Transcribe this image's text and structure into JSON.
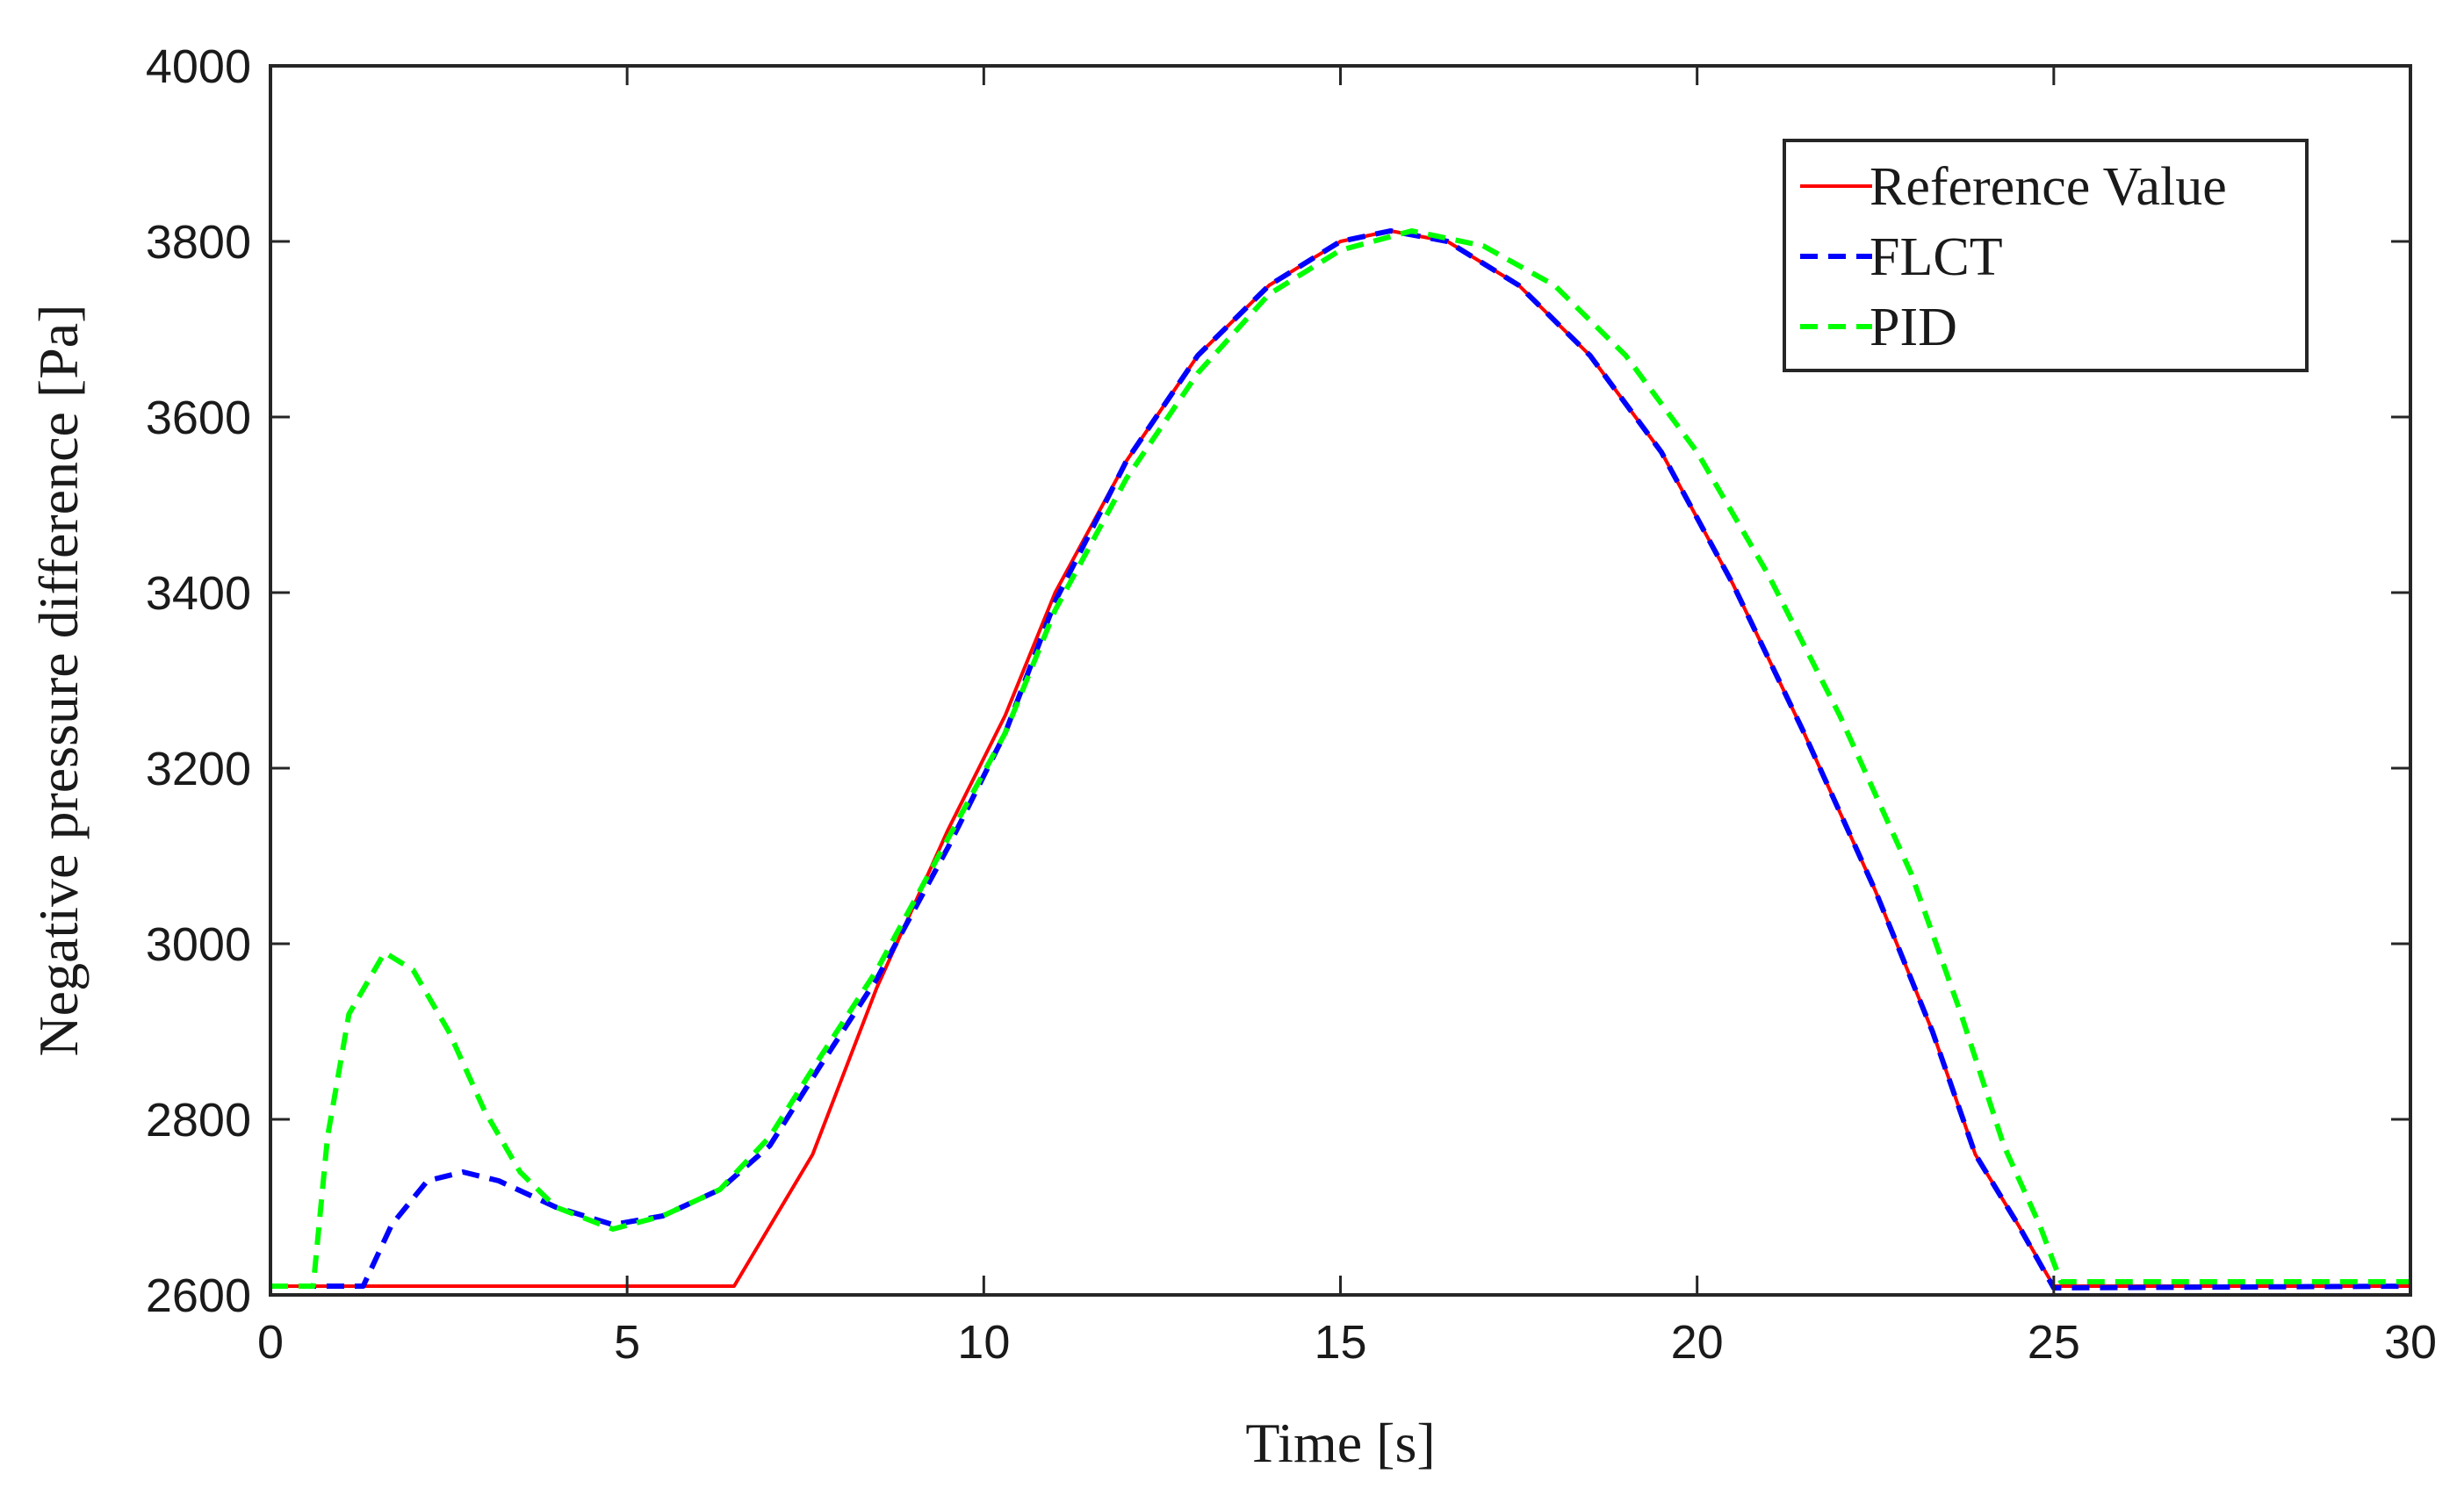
{
  "chart_data": {
    "type": "line",
    "title": "",
    "xlabel": "Time [s]",
    "ylabel": "Negative pressure difference [Pa]",
    "xlim": [
      0,
      30
    ],
    "ylim": [
      2600,
      4000
    ],
    "xticks": [
      0,
      5,
      10,
      15,
      20,
      25,
      30
    ],
    "yticks": [
      2600,
      2800,
      3000,
      3200,
      3400,
      3600,
      3800,
      4000
    ],
    "grid": false,
    "legend_position": "top-right",
    "series": [
      {
        "name": "Reference Value",
        "color": "#ff0000",
        "style": "solid",
        "points": [
          [
            0,
            2610
          ],
          [
            6.5,
            2610
          ],
          [
            7.6,
            2760
          ],
          [
            8.5,
            2950
          ],
          [
            9.5,
            3130
          ],
          [
            10.3,
            3260
          ],
          [
            11,
            3400
          ],
          [
            12,
            3550
          ],
          [
            13,
            3670
          ],
          [
            14,
            3750
          ],
          [
            15,
            3800
          ],
          [
            15.7,
            3812
          ],
          [
            16.5,
            3800
          ],
          [
            17.5,
            3750
          ],
          [
            18.5,
            3670
          ],
          [
            19.5,
            3560
          ],
          [
            20.5,
            3410
          ],
          [
            21.5,
            3240
          ],
          [
            22.5,
            3060
          ],
          [
            23.3,
            2900
          ],
          [
            23.9,
            2760
          ],
          [
            24.5,
            2680
          ],
          [
            25,
            2610
          ],
          [
            30,
            2610
          ]
        ]
      },
      {
        "name": "FLCT",
        "color": "#0000ff",
        "style": "dashed",
        "points": [
          [
            0,
            2610
          ],
          [
            1.3,
            2610
          ],
          [
            1.7,
            2680
          ],
          [
            2.2,
            2730
          ],
          [
            2.7,
            2740
          ],
          [
            3.2,
            2730
          ],
          [
            4,
            2700
          ],
          [
            4.8,
            2680
          ],
          [
            5.5,
            2690
          ],
          [
            6.3,
            2720
          ],
          [
            7,
            2770
          ],
          [
            7.7,
            2860
          ],
          [
            8.5,
            2960
          ],
          [
            9.5,
            3110
          ],
          [
            10.3,
            3240
          ],
          [
            11,
            3390
          ],
          [
            12,
            3550
          ],
          [
            13,
            3670
          ],
          [
            14,
            3750
          ],
          [
            15,
            3800
          ],
          [
            15.7,
            3812
          ],
          [
            16.5,
            3800
          ],
          [
            17.5,
            3750
          ],
          [
            18.5,
            3670
          ],
          [
            19.5,
            3560
          ],
          [
            20.5,
            3410
          ],
          [
            21.5,
            3240
          ],
          [
            22.5,
            3060
          ],
          [
            23.3,
            2900
          ],
          [
            23.9,
            2760
          ],
          [
            24.5,
            2680
          ],
          [
            25,
            2608
          ],
          [
            30,
            2610
          ]
        ]
      },
      {
        "name": "PID",
        "color": "#00ff00",
        "style": "dashed",
        "points": [
          [
            0,
            2610
          ],
          [
            0.6,
            2610
          ],
          [
            0.8,
            2780
          ],
          [
            1.1,
            2920
          ],
          [
            1.6,
            2990
          ],
          [
            2,
            2970
          ],
          [
            2.5,
            2900
          ],
          [
            3,
            2810
          ],
          [
            3.5,
            2740
          ],
          [
            4,
            2700
          ],
          [
            4.8,
            2675
          ],
          [
            5.5,
            2690
          ],
          [
            6.3,
            2720
          ],
          [
            7,
            2780
          ],
          [
            7.7,
            2870
          ],
          [
            8.5,
            2970
          ],
          [
            9.5,
            3120
          ],
          [
            10.3,
            3240
          ],
          [
            11,
            3380
          ],
          [
            12,
            3530
          ],
          [
            13,
            3650
          ],
          [
            14,
            3740
          ],
          [
            15,
            3790
          ],
          [
            16,
            3812
          ],
          [
            17,
            3795
          ],
          [
            18,
            3750
          ],
          [
            19,
            3670
          ],
          [
            20,
            3560
          ],
          [
            21,
            3420
          ],
          [
            22,
            3260
          ],
          [
            23,
            3080
          ],
          [
            23.7,
            2920
          ],
          [
            24.3,
            2770
          ],
          [
            24.8,
            2680
          ],
          [
            25.1,
            2615
          ],
          [
            30,
            2615
          ]
        ]
      }
    ]
  }
}
